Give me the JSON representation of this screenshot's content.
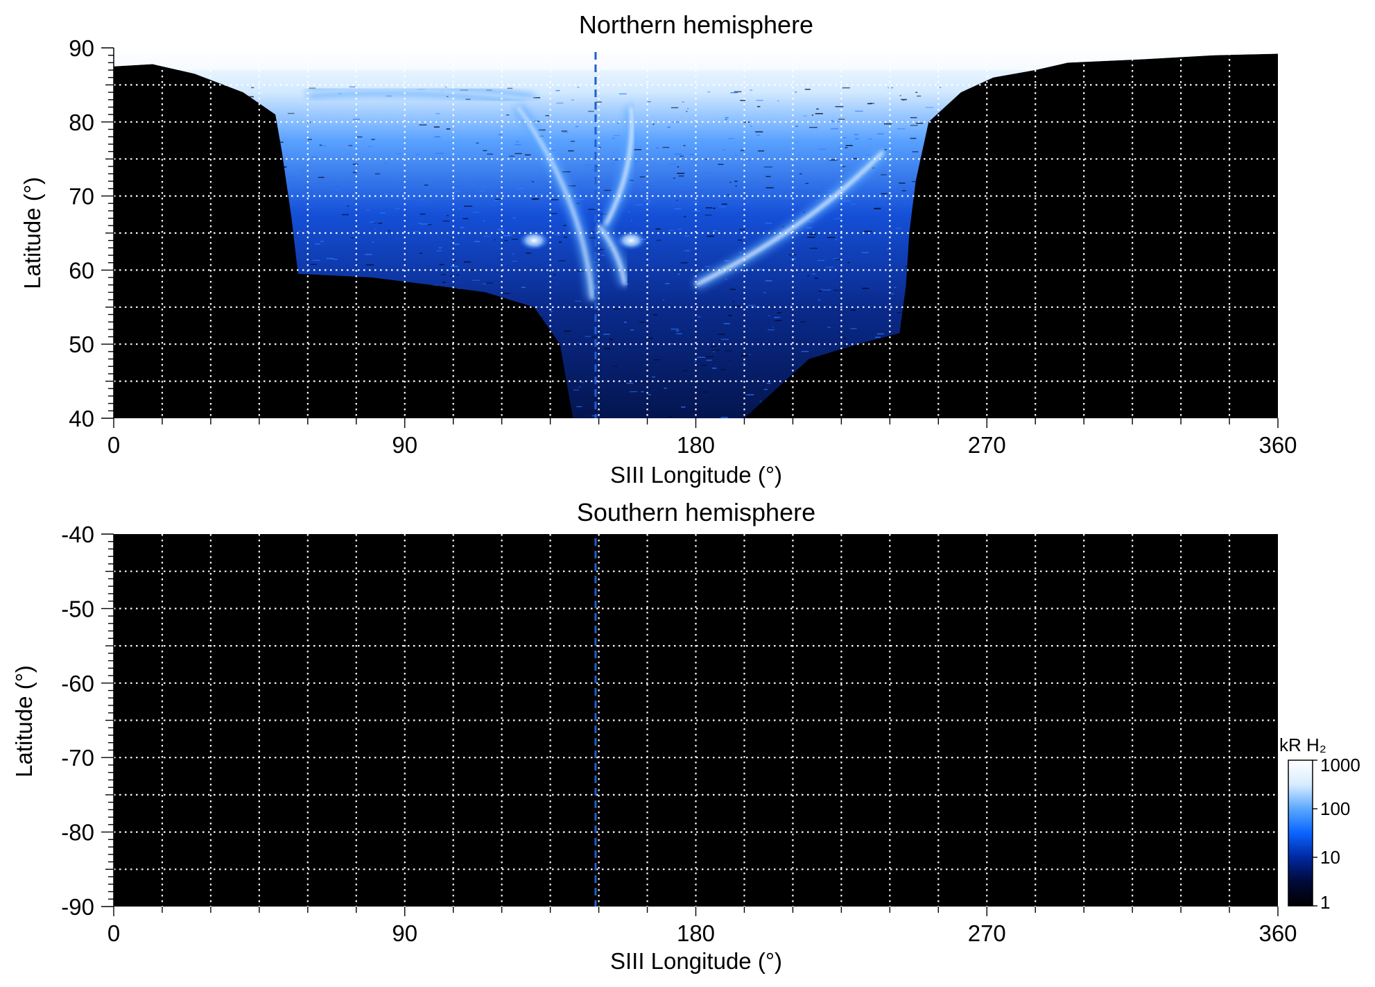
{
  "chart_data": [
    {
      "type": "heatmap",
      "title": "Northern hemisphere",
      "xlabel": "SIII Longitude (°)",
      "ylabel": "Latitude (°)",
      "xlim": [
        0,
        360
      ],
      "ylim": [
        40,
        90
      ],
      "xticks": [
        0,
        90,
        180,
        270,
        360
      ],
      "yticks": [
        40,
        50,
        60,
        70,
        80,
        90
      ],
      "grid": true,
      "grid_x_step": 15,
      "grid_y_step": 5,
      "dashed_line_longitude": 149,
      "background_value": "black (no data / <1 kR)",
      "emission": {
        "observed_region_boundary": [
          [
            0,
            87.5
          ],
          [
            12,
            87.8
          ],
          [
            25,
            86.5
          ],
          [
            40,
            84
          ],
          [
            50,
            81
          ],
          [
            52,
            76
          ],
          [
            55,
            67
          ],
          [
            57,
            59.5
          ],
          [
            80,
            59
          ],
          [
            98,
            58
          ],
          [
            115,
            57
          ],
          [
            130,
            55
          ],
          [
            138,
            50
          ],
          [
            140,
            45
          ],
          [
            142,
            40
          ],
          [
            195,
            40
          ],
          [
            205,
            44
          ],
          [
            215,
            48
          ],
          [
            230,
            50
          ],
          [
            243,
            51.5
          ],
          [
            245,
            58
          ],
          [
            246,
            65
          ],
          [
            248,
            72
          ],
          [
            252,
            80
          ],
          [
            262,
            84
          ],
          [
            272,
            86
          ],
          [
            285,
            87
          ],
          [
            295,
            88
          ],
          [
            320,
            88.5
          ],
          [
            340,
            89
          ],
          [
            360,
            89.2
          ],
          [
            360,
            90
          ],
          [
            0,
            90
          ]
        ],
        "main_oval_arcs": [
          {
            "from": [
              238,
              76
            ],
            "to": [
              180,
              58
            ],
            "brightness_kR": 1000
          },
          {
            "from": [
              160,
              82
            ],
            "to": [
              152,
              66
            ],
            "brightness_kR": 1000
          },
          {
            "from": [
              125,
              82
            ],
            "to": [
              148,
              56
            ],
            "brightness_kR": 800
          },
          {
            "from": [
              150,
              66
            ],
            "to": [
              158,
              58
            ],
            "brightness_kR": 900
          },
          {
            "from": [
              60,
              84
            ],
            "to": [
              130,
              83
            ],
            "brightness_kR": 700
          }
        ],
        "bright_spots": [
          {
            "lon": 130,
            "lat": 64,
            "brightness_kR": 1000
          },
          {
            "lon": 160,
            "lat": 64,
            "brightness_kR": 800
          }
        ],
        "polar_cap_brightness_kR": 1000,
        "polar_cap_min_lat": 83
      }
    },
    {
      "type": "heatmap",
      "title": "Southern hemisphere",
      "xlabel": "SIII Longitude (°)",
      "ylabel": "Latitude (°)",
      "xlim": [
        0,
        360
      ],
      "ylim": [
        -90,
        -40
      ],
      "xticks": [
        0,
        90,
        180,
        270,
        360
      ],
      "yticks": [
        -40,
        -50,
        -60,
        -70,
        -80,
        -90
      ],
      "grid": true,
      "grid_x_step": 15,
      "grid_y_step": 5,
      "dashed_line_longitude": 149,
      "background_value": "black (no data)"
    }
  ],
  "colorbar": {
    "label": "kR H₂",
    "scale": "log",
    "range": [
      1,
      1000
    ],
    "ticks": [
      "1",
      "10",
      "100",
      "1000"
    ],
    "colors": [
      "#000000",
      "#000a3a",
      "#0028a0",
      "#0a64ff",
      "#5aa8ff",
      "#d8ecff",
      "#ffffff"
    ]
  },
  "colors": {
    "dashed_line": "#1f5fd0",
    "grid": "#ffffff",
    "background": "#000000"
  }
}
